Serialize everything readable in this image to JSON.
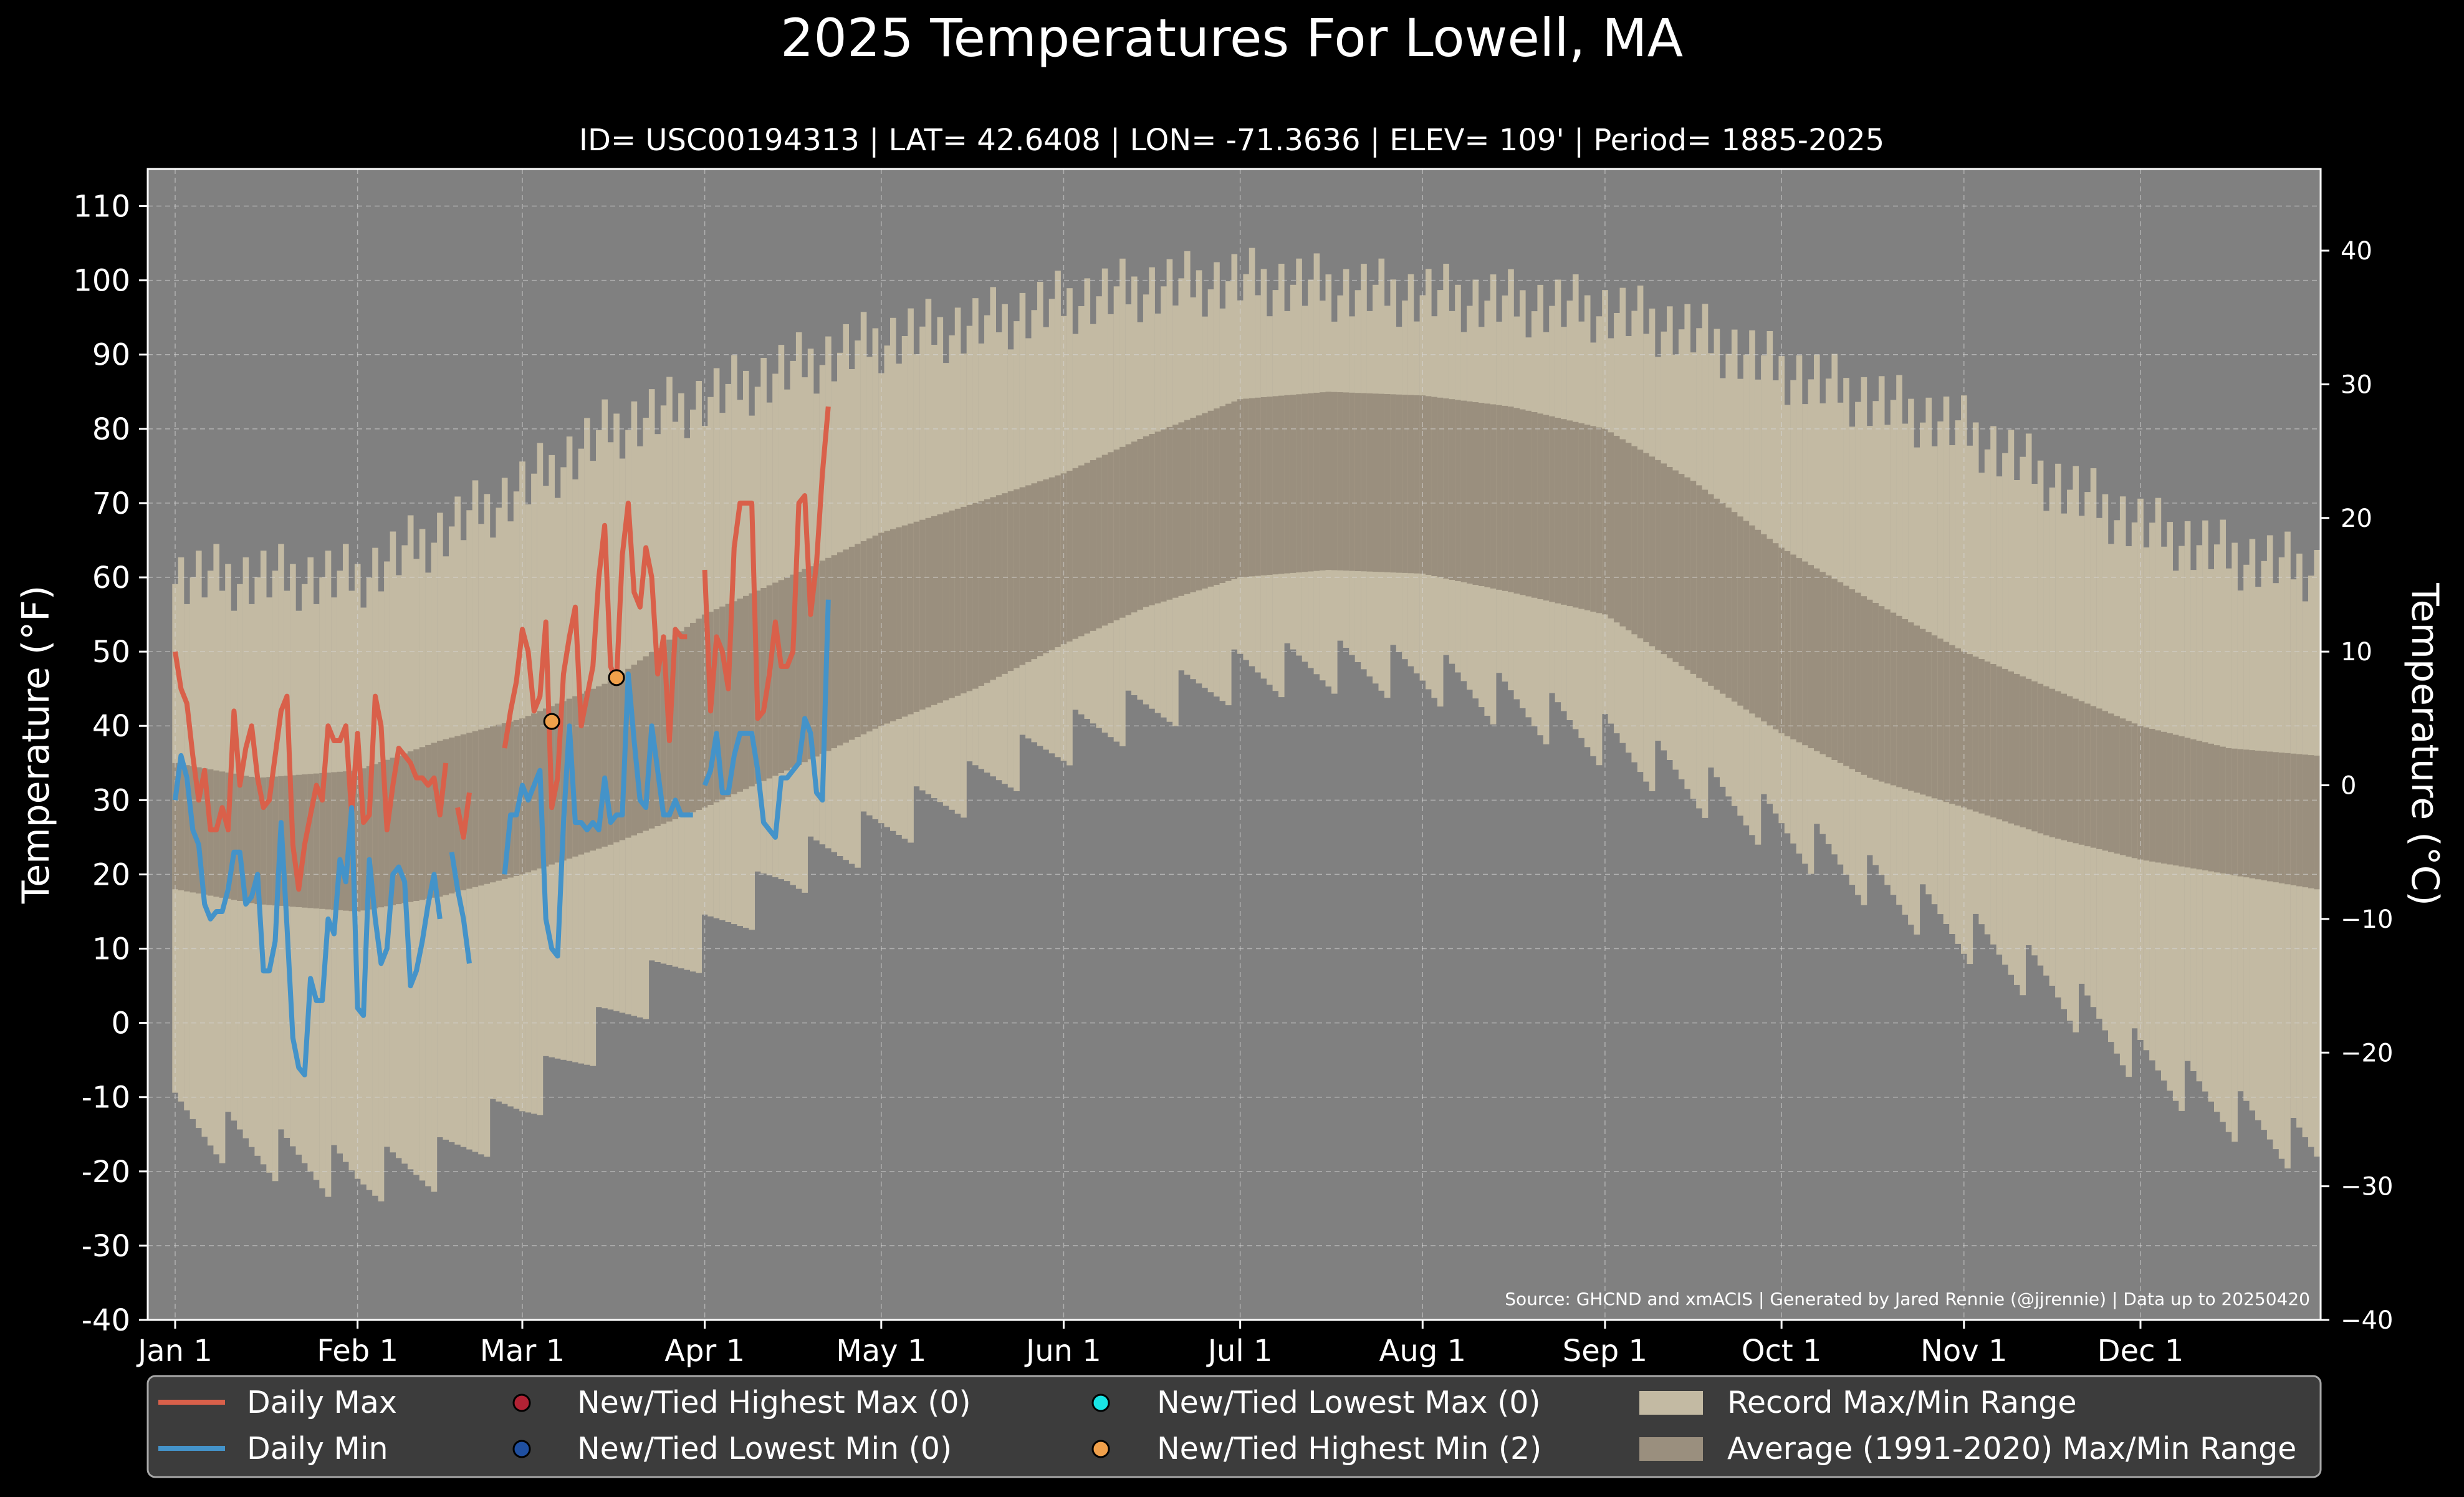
{
  "title": "2025 Temperatures For Lowell, MA",
  "subtitle": "ID= USC00194313 | LAT= 42.6408 | LON= -71.3636 | ELEV= 109' | Period= 1885-2025",
  "source_note": "Source: GHCND and xmACIS | Generated by Jared Rennie (@jjrennie) | Data up to 20250420",
  "colors": {
    "background": "#000000",
    "plot_bg": "#808080",
    "record_band": "#c3baa3",
    "normal_band": "#9a8f7e",
    "daily_max": "#d9604a",
    "daily_min": "#4493c9",
    "new_high_max": "#b22234",
    "new_low_min": "#1f4fa0",
    "new_low_max": "#19e4e4",
    "new_high_min": "#f0a04b",
    "legend_bg": "#3c3c3c"
  },
  "chart_data": {
    "type": "line",
    "xlabel": "",
    "ylabel": "Temperature ($^\\circ$F)",
    "y2label": "Temperature ($^\\circ$C)",
    "ylim_f": [
      -40,
      115
    ],
    "ylim_c": [
      -40,
      45
    ],
    "yticks_f": [
      "110",
      "100",
      "90",
      "80",
      "70",
      "60",
      "50",
      "40",
      "30",
      "20",
      "10",
      "0",
      "-10",
      "-20",
      "-30",
      "-40"
    ],
    "yticks_c": [
      "40",
      "30",
      "20",
      "10",
      "0",
      "−10",
      "−20",
      "−30",
      "−40"
    ],
    "xticks": [
      {
        "label": "Jan 1",
        "day": 1
      },
      {
        "label": "Feb 1",
        "day": 32
      },
      {
        "label": "Mar 1",
        "day": 60
      },
      {
        "label": "Apr 1",
        "day": 91
      },
      {
        "label": "May 1",
        "day": 121
      },
      {
        "label": "Jun 1",
        "day": 152
      },
      {
        "label": "Jul 1",
        "day": 182
      },
      {
        "label": "Aug 1",
        "day": 213
      },
      {
        "label": "Sep 1",
        "day": 244
      },
      {
        "label": "Oct 1",
        "day": 274
      },
      {
        "label": "Nov 1",
        "day": 305
      },
      {
        "label": "Dec 1",
        "day": 335
      }
    ],
    "grid": true,
    "record_range": {
      "max_anchors": [
        [
          1,
          60
        ],
        [
          15,
          60
        ],
        [
          32,
          60
        ],
        [
          46,
          66
        ],
        [
          60,
          72
        ],
        [
          75,
          80
        ],
        [
          91,
          84
        ],
        [
          105,
          88
        ],
        [
          121,
          92
        ],
        [
          137,
          94
        ],
        [
          152,
          97
        ],
        [
          166,
          99
        ],
        [
          182,
          100
        ],
        [
          197,
          99
        ],
        [
          213,
          98
        ],
        [
          228,
          97
        ],
        [
          244,
          96
        ],
        [
          259,
          93
        ],
        [
          274,
          88
        ],
        [
          289,
          84
        ],
        [
          305,
          80
        ],
        [
          320,
          73
        ],
        [
          335,
          67
        ],
        [
          350,
          63
        ],
        [
          365,
          61
        ]
      ],
      "min_anchors": [
        [
          1,
          -13
        ],
        [
          15,
          -17
        ],
        [
          32,
          -21
        ],
        [
          46,
          -19
        ],
        [
          60,
          -11
        ],
        [
          75,
          0
        ],
        [
          91,
          11
        ],
        [
          105,
          20
        ],
        [
          121,
          26
        ],
        [
          137,
          32
        ],
        [
          152,
          38
        ],
        [
          166,
          42
        ],
        [
          182,
          47
        ],
        [
          197,
          48
        ],
        [
          213,
          47
        ],
        [
          228,
          43
        ],
        [
          244,
          38
        ],
        [
          259,
          32
        ],
        [
          274,
          26
        ],
        [
          289,
          19
        ],
        [
          305,
          12
        ],
        [
          320,
          5
        ],
        [
          335,
          -5
        ],
        [
          350,
          -12
        ],
        [
          365,
          -18
        ]
      ]
    },
    "normal_range": {
      "max_anchors": [
        [
          1,
          35
        ],
        [
          15,
          33
        ],
        [
          32,
          34
        ],
        [
          46,
          38
        ],
        [
          60,
          41
        ],
        [
          75,
          46
        ],
        [
          91,
          55
        ],
        [
          105,
          60
        ],
        [
          121,
          66
        ],
        [
          137,
          70
        ],
        [
          152,
          74
        ],
        [
          166,
          79
        ],
        [
          182,
          84
        ],
        [
          197,
          85
        ],
        [
          213,
          84.5
        ],
        [
          228,
          83
        ],
        [
          244,
          80
        ],
        [
          259,
          73
        ],
        [
          274,
          64
        ],
        [
          289,
          57
        ],
        [
          305,
          50
        ],
        [
          320,
          45
        ],
        [
          335,
          40
        ],
        [
          350,
          37
        ],
        [
          365,
          36
        ]
      ],
      "min_anchors": [
        [
          1,
          18
        ],
        [
          15,
          16
        ],
        [
          32,
          15
        ],
        [
          46,
          17
        ],
        [
          60,
          20
        ],
        [
          75,
          24
        ],
        [
          91,
          29
        ],
        [
          105,
          34
        ],
        [
          121,
          40
        ],
        [
          137,
          45
        ],
        [
          152,
          51
        ],
        [
          166,
          56
        ],
        [
          182,
          60
        ],
        [
          197,
          61
        ],
        [
          213,
          60.5
        ],
        [
          228,
          58
        ],
        [
          244,
          55
        ],
        [
          259,
          47
        ],
        [
          274,
          39
        ],
        [
          289,
          33
        ],
        [
          305,
          29
        ],
        [
          320,
          25
        ],
        [
          335,
          22
        ],
        [
          350,
          20
        ],
        [
          365,
          18
        ]
      ]
    },
    "series": [
      {
        "name": "Daily Max",
        "values": [
          50,
          45,
          43,
          36,
          30,
          34,
          26,
          26,
          29,
          26,
          42,
          32,
          37,
          40,
          33,
          29,
          30,
          36,
          42,
          44,
          24,
          18,
          24,
          28,
          32,
          30,
          40,
          38,
          38,
          40,
          28,
          39,
          27,
          28,
          44,
          40,
          26,
          32,
          37,
          36,
          35,
          33,
          33,
          32,
          33,
          28,
          35,
          null,
          29,
          25,
          31,
          null,
          null,
          null,
          null,
          null,
          37,
          42,
          46,
          53,
          50,
          42,
          44,
          54,
          29,
          33,
          47,
          52,
          56,
          40,
          44,
          48,
          60,
          67,
          48,
          46,
          63,
          70,
          58,
          56,
          64,
          60,
          47,
          52,
          38,
          53,
          52,
          52,
          null,
          null,
          61,
          42,
          52,
          50,
          45,
          64,
          70,
          70,
          70,
          41,
          42,
          47,
          54,
          48,
          48,
          50,
          70,
          71,
          55,
          62,
          74,
          83
        ]
      },
      {
        "name": "Daily Min",
        "values": [
          30,
          36,
          33,
          26,
          24,
          16,
          14,
          15,
          15,
          18,
          23,
          23,
          16,
          17,
          20,
          7,
          7,
          11,
          27,
          13,
          -2,
          -6,
          -7,
          6,
          3,
          3,
          14,
          12,
          22,
          19,
          29,
          2,
          1,
          22,
          14,
          8,
          10,
          20,
          21,
          19,
          5,
          7,
          11,
          16,
          20,
          14,
          null,
          23,
          18,
          14,
          8,
          null,
          null,
          null,
          null,
          null,
          20,
          28,
          28,
          32,
          30,
          32,
          34,
          14,
          10,
          9,
          27,
          40,
          27,
          27,
          26,
          27,
          26,
          33,
          27,
          28,
          28,
          47,
          38,
          30,
          29,
          40,
          34,
          28,
          28,
          30,
          28,
          28,
          28,
          null,
          32,
          34,
          39,
          31,
          31,
          36,
          39,
          39,
          39,
          34,
          27,
          26,
          25,
          33,
          33,
          34,
          35,
          41,
          39,
          31,
          30,
          57
        ]
      }
    ],
    "records": [
      {
        "name": "New/Tied Highest Min",
        "day": 65,
        "value": 40.6
      },
      {
        "name": "New/Tied Highest Min",
        "day": 76,
        "value": 46.5
      }
    ]
  },
  "legend": {
    "items": [
      {
        "label": "Daily Max"
      },
      {
        "label": "Daily Min"
      },
      {
        "label": "New/Tied Highest Max (0)"
      },
      {
        "label": "New/Tied Lowest Min (0)"
      },
      {
        "label": "New/Tied Lowest Max (0)"
      },
      {
        "label": "New/Tied Highest Min (2)"
      },
      {
        "label": "Record Max/Min Range"
      },
      {
        "label": "Average (1991-2020) Max/Min Range"
      }
    ]
  }
}
